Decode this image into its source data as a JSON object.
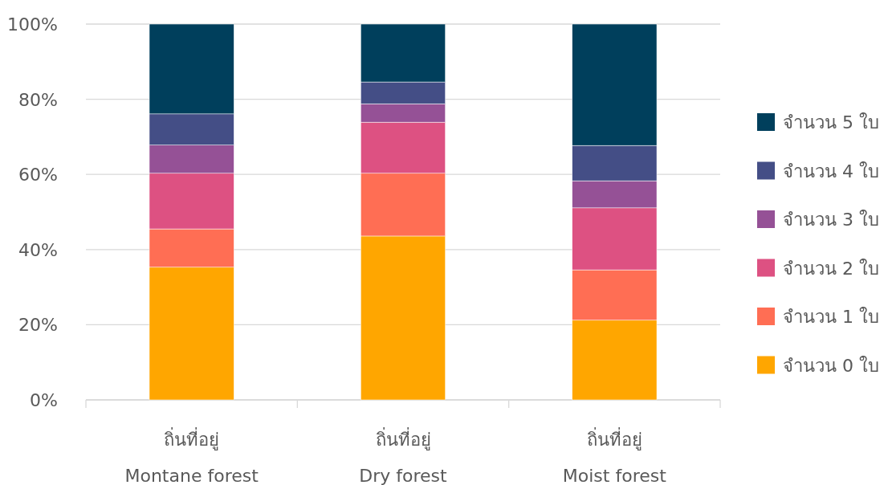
{
  "chart_data": {
    "type": "bar",
    "stacked": true,
    "categories": [
      "ถิ่นที่อยู่\nMontane forest",
      "ถิ่นที่อยู่\nDry forest",
      "ถิ่นที่อยู่\nMoist forest"
    ],
    "series": [
      {
        "name": "จำนวน 0 ใบ",
        "color": "#ffa600",
        "values": [
          35.3,
          43.6,
          21.2
        ]
      },
      {
        "name": "จำนวน 1 ใบ",
        "color": "#ff6e54",
        "values": [
          10.2,
          16.7,
          13.4
        ]
      },
      {
        "name": "จำนวน 2 ใบ",
        "color": "#dd5182",
        "values": [
          14.8,
          13.6,
          16.5
        ]
      },
      {
        "name": "จำนวน 3 ใบ",
        "color": "#955196",
        "values": [
          7.5,
          4.9,
          7.2
        ]
      },
      {
        "name": "จำนวน 4 ใบ",
        "color": "#444e86",
        "values": [
          8.3,
          5.8,
          9.4
        ]
      },
      {
        "name": "จำนวน 5 ใบ",
        "color": "#003f5c",
        "values": [
          23.9,
          15.4,
          32.3
        ]
      }
    ],
    "ylim": [
      0,
      100
    ],
    "yticks": [
      {
        "value": 0,
        "label": "0%"
      },
      {
        "value": 20,
        "label": "20%"
      },
      {
        "value": 40,
        "label": "40%"
      },
      {
        "value": 60,
        "label": "60%"
      },
      {
        "value": 80,
        "label": "80%"
      },
      {
        "value": 100,
        "label": "100%"
      }
    ],
    "grid": "y",
    "legend": "right"
  }
}
